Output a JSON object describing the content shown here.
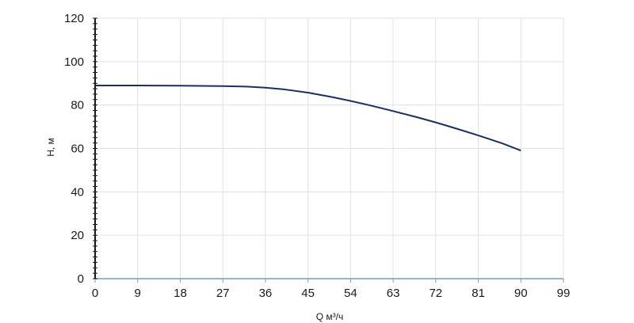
{
  "chart_data": {
    "type": "line",
    "xlabel": "Q м³/ч",
    "ylabel": "H, м",
    "xlim": [
      0,
      99
    ],
    "ylim": [
      0,
      120
    ],
    "x_ticks": [
      0,
      9,
      18,
      27,
      36,
      45,
      54,
      63,
      72,
      81,
      90,
      99
    ],
    "y_ticks": [
      0,
      20,
      40,
      60,
      80,
      100,
      120
    ],
    "grid": true,
    "series": [
      {
        "color": "#1c2f5e",
        "x": [
          0,
          9,
          18,
          27,
          32,
          36,
          40,
          45,
          50,
          54,
          58,
          63,
          68,
          72,
          76,
          81,
          86,
          90
        ],
        "y": [
          89.0,
          89.0,
          88.9,
          88.7,
          88.5,
          88.0,
          87.2,
          85.7,
          83.7,
          81.9,
          79.9,
          77.2,
          74.4,
          72.0,
          69.4,
          66.0,
          62.4,
          59.0
        ]
      }
    ],
    "colors": {
      "grid": "#dde2ea",
      "axis": "#1a1a1a",
      "x_axis_line": "#7a9bc4"
    }
  }
}
